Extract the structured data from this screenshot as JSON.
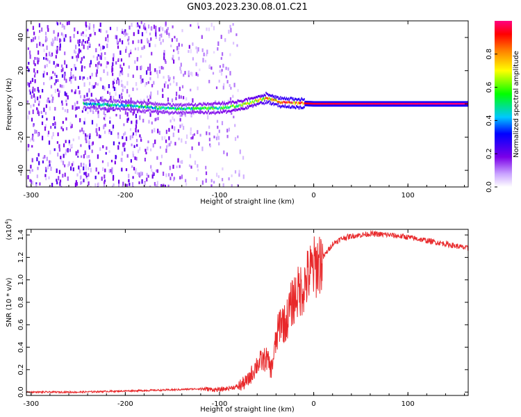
{
  "title": "GN03.2023.230.08.01.C21",
  "chart_data": [
    {
      "type": "heatmap",
      "xlabel": "Height of straight line (km)",
      "ylabel": "Frequency (Hz)",
      "xlim": [
        -305,
        164
      ],
      "ylim": [
        -50,
        50
      ],
      "xticks": [
        "-300",
        "-200",
        "-100",
        "0",
        "100"
      ],
      "yticks": [
        "-40",
        "-20",
        "0",
        "20",
        "40"
      ],
      "colorbar": {
        "label": "Normalized spectral amplitude",
        "range": [
          0,
          1
        ],
        "ticks": [
          "0.0",
          "0.2",
          "0.4",
          "0.6",
          "0.8"
        ],
        "colors": [
          "#ffffff",
          "#7b00e8",
          "#0000ff",
          "#00c8ff",
          "#00ff00",
          "#ffff00",
          "#ff8000",
          "#ff0000",
          "#ff0080"
        ]
      },
      "noise_region": {
        "x_from": -305,
        "x_to": -95,
        "amplitude": 0.15
      },
      "signal_band": [
        {
          "x": -245,
          "f": 0.0,
          "amp": 0.45
        },
        {
          "x": -200,
          "f": -1.0,
          "amp": 0.5
        },
        {
          "x": -150,
          "f": -3.0,
          "amp": 0.5
        },
        {
          "x": -100,
          "f": -2.5,
          "amp": 0.55
        },
        {
          "x": -80,
          "f": -1.0,
          "amp": 0.6
        },
        {
          "x": -60,
          "f": 2.0,
          "amp": 0.7
        },
        {
          "x": -50,
          "f": 3.5,
          "amp": 0.8
        },
        {
          "x": -35,
          "f": 1.0,
          "amp": 0.85
        },
        {
          "x": -20,
          "f": 0.5,
          "amp": 0.9
        },
        {
          "x": 0,
          "f": 0.0,
          "amp": 0.95
        },
        {
          "x": 164,
          "f": 0.0,
          "amp": 1.0
        }
      ]
    },
    {
      "type": "line",
      "xlabel": "Height of straight line (km)",
      "ylabel": "SNR (10 * v/v)",
      "y_multiplier": "(x10",
      "y_multiplier_exp": "4",
      "y_multiplier_close": ")",
      "xlim": [
        -305,
        164
      ],
      "ylim": [
        -0.03,
        1.45
      ],
      "xticks": [
        "-300",
        "-200",
        "-100",
        "0",
        "100"
      ],
      "yticks": [
        "0.0",
        "0.2",
        "0.4",
        "0.6",
        "0.8",
        "1.0",
        "1.2",
        "1.4"
      ],
      "color": "#e8282a",
      "x": [
        -305,
        -250,
        -200,
        -150,
        -120,
        -100,
        -80,
        -70,
        -60,
        -50,
        -45,
        -40,
        -35,
        -30,
        -25,
        -20,
        -15,
        -10,
        -5,
        0,
        10,
        20,
        30,
        40,
        60,
        80,
        100,
        120,
        140,
        164
      ],
      "y": [
        0.0,
        0.0,
        0.01,
        0.02,
        0.03,
        0.02,
        0.05,
        0.1,
        0.25,
        0.3,
        0.2,
        0.45,
        0.65,
        0.6,
        0.75,
        0.85,
        0.9,
        0.95,
        1.05,
        1.1,
        1.2,
        1.32,
        1.37,
        1.39,
        1.41,
        1.4,
        1.38,
        1.35,
        1.32,
        1.28
      ]
    }
  ]
}
